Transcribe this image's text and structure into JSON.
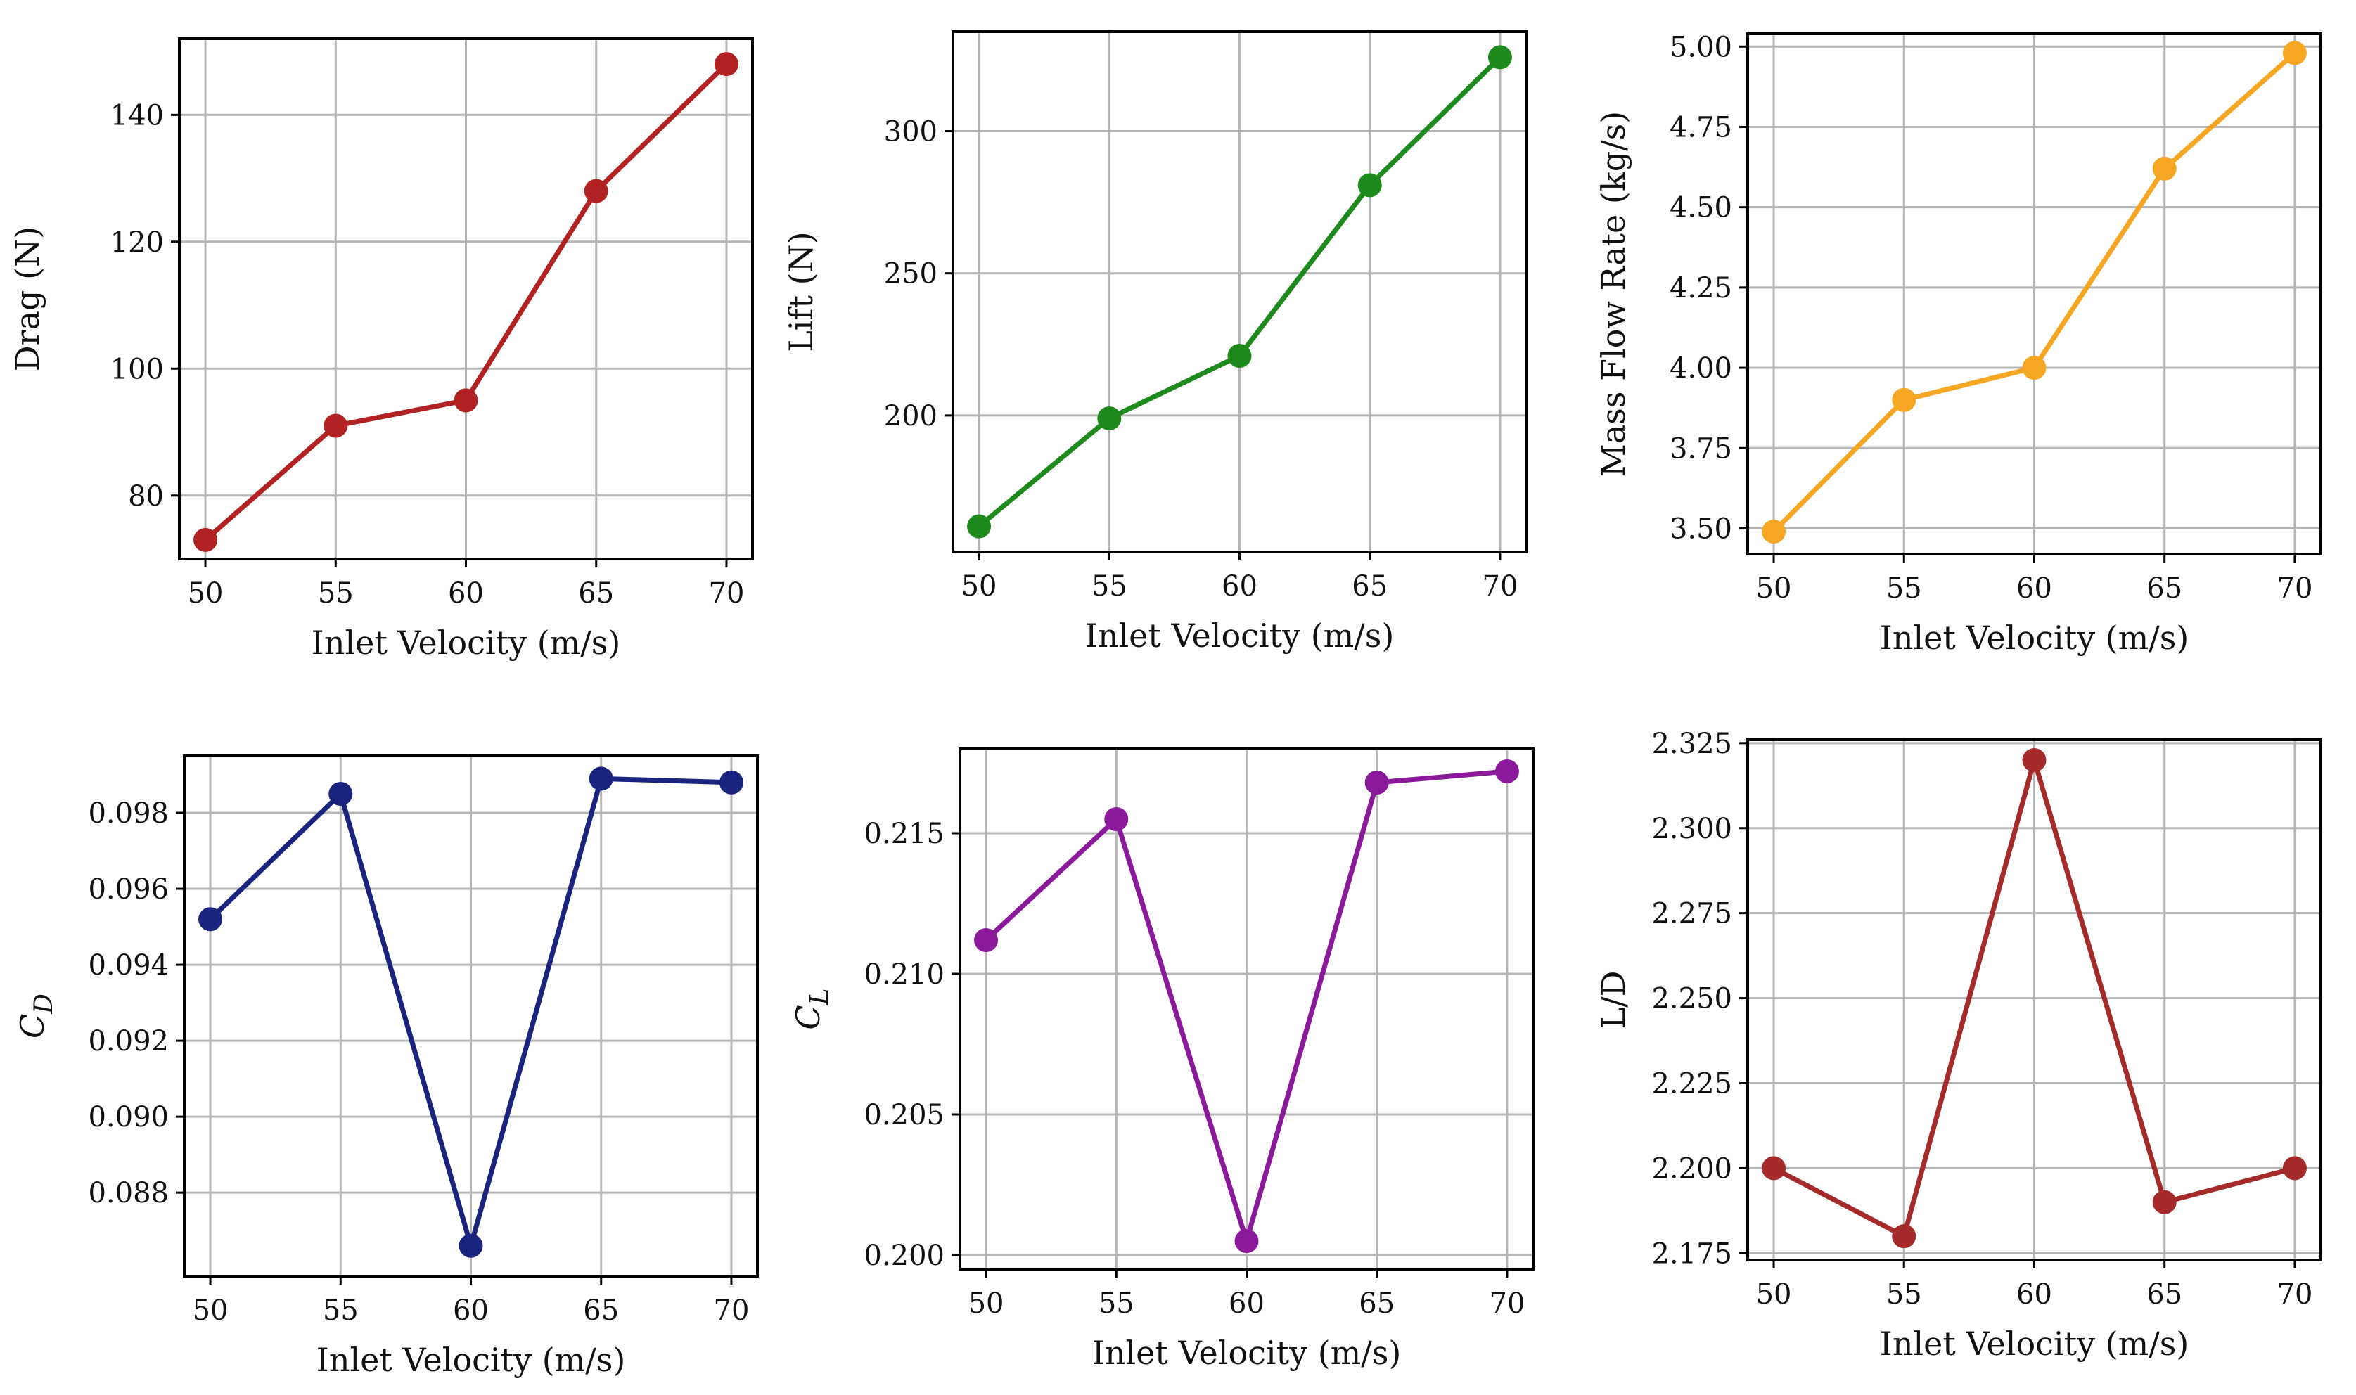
{
  "chart_data": [
    {
      "type": "line",
      "xlabel": "Inlet Velocity (m/s)",
      "ylabel": "Drag (N)",
      "x": [
        50,
        55,
        60,
        65,
        70
      ],
      "series": [
        {
          "values": [
            73,
            91,
            95,
            128,
            148
          ],
          "color": "#b22222"
        }
      ],
      "xlim": [
        49.0,
        71.0
      ],
      "ylim": [
        70.0,
        152.0
      ],
      "xticks": [
        50,
        55,
        60,
        65,
        70
      ],
      "yticks": [
        80,
        100,
        120,
        140
      ],
      "grid": true
    },
    {
      "type": "line",
      "xlabel": "Inlet Velocity (m/s)",
      "ylabel": "Lift (N)",
      "x": [
        50,
        55,
        60,
        65,
        70
      ],
      "series": [
        {
          "values": [
            161,
            199,
            221,
            281,
            326
          ],
          "color": "#1e8a1e"
        }
      ],
      "xlim": [
        49.0,
        71.0
      ],
      "ylim": [
        152.0,
        335.0
      ],
      "xticks": [
        50,
        55,
        60,
        65,
        70
      ],
      "yticks": [
        200,
        250,
        300
      ],
      "grid": true
    },
    {
      "type": "line",
      "xlabel": "Inlet Velocity (m/s)",
      "ylabel": "Mass Flow Rate (kg/s)",
      "x": [
        50,
        55,
        60,
        65,
        70
      ],
      "series": [
        {
          "values": [
            3.49,
            3.9,
            4.0,
            4.62,
            4.98
          ],
          "color": "#f5a623"
        }
      ],
      "xlim": [
        49.0,
        71.0
      ],
      "ylim": [
        3.42,
        5.04
      ],
      "xticks": [
        50,
        55,
        60,
        65,
        70
      ],
      "yticks": [
        "3.50",
        "3.75",
        "4.00",
        "4.25",
        "4.50",
        "4.75",
        "5.00"
      ],
      "grid": true
    },
    {
      "type": "line",
      "xlabel": "Inlet Velocity (m/s)",
      "ylabel_main": "C",
      "ylabel_sub": "D",
      "x": [
        50,
        55,
        60,
        65,
        70
      ],
      "series": [
        {
          "values": [
            0.0952,
            0.0985,
            0.0866,
            0.0989,
            0.0988
          ],
          "color": "#1a237e"
        }
      ],
      "xlim": [
        49.0,
        71.0
      ],
      "ylim": [
        0.0858,
        0.0995
      ],
      "xticks": [
        50,
        55,
        60,
        65,
        70
      ],
      "yticks": [
        "0.088",
        "0.090",
        "0.092",
        "0.094",
        "0.096",
        "0.098"
      ],
      "grid": true
    },
    {
      "type": "line",
      "xlabel": "Inlet Velocity (m/s)",
      "ylabel_main": "C",
      "ylabel_sub": "L",
      "x": [
        50,
        55,
        60,
        65,
        70
      ],
      "series": [
        {
          "values": [
            0.2112,
            0.2155,
            0.2005,
            0.2168,
            0.2172
          ],
          "color": "#8b1a9b"
        }
      ],
      "xlim": [
        49.0,
        71.0
      ],
      "ylim": [
        0.1995,
        0.218
      ],
      "xticks": [
        50,
        55,
        60,
        65,
        70
      ],
      "yticks": [
        "0.200",
        "0.205",
        "0.210",
        "0.215"
      ],
      "grid": true
    },
    {
      "type": "line",
      "xlabel": "Inlet Velocity (m/s)",
      "ylabel": "L/D",
      "x": [
        50,
        55,
        60,
        65,
        70
      ],
      "series": [
        {
          "values": [
            2.2,
            2.18,
            2.32,
            2.19,
            2.2
          ],
          "color": "#a52a2a"
        }
      ],
      "xlim": [
        49.0,
        71.0
      ],
      "ylim": [
        2.173,
        2.326
      ],
      "xticks": [
        50,
        55,
        60,
        65,
        70
      ],
      "yticks": [
        "2.175",
        "2.200",
        "2.225",
        "2.250",
        "2.275",
        "2.300",
        "2.325"
      ],
      "grid": true
    }
  ]
}
